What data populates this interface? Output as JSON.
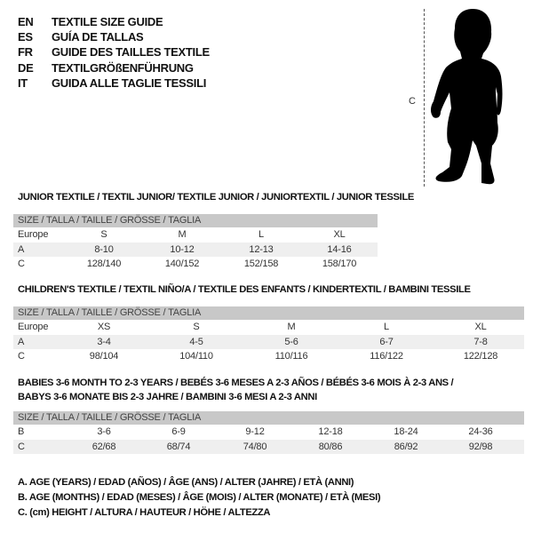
{
  "header": [
    {
      "code": "EN",
      "text": "TEXTILE SIZE GUIDE"
    },
    {
      "code": "ES",
      "text": "GUÍA DE TALLAS"
    },
    {
      "code": "FR",
      "text": "GUIDE DES TAILLES TEXTILE"
    },
    {
      "code": "DE",
      "text": "TEXTILGRÖßENFÜHRUNG"
    },
    {
      "code": "IT",
      "text": "GUIDA ALLE TAGLIE TESSILI"
    }
  ],
  "figure": {
    "measure_label": "C",
    "icon": "child-silhouette"
  },
  "tables": [
    {
      "title": [
        "JUNIOR TEXTILE / TEXTIL JUNIOR/ TEXTILE JUNIOR / JUNIORTEXTIL / JUNIOR TESSILE"
      ],
      "size_header": "SIZE / TALLA / TAILLE / GRÖSSE / TAGLIA",
      "rows": [
        {
          "label": "Europe",
          "values": [
            "S",
            "M",
            "L",
            "XL"
          ]
        },
        {
          "label": "A",
          "values": [
            "8-10",
            "10-12",
            "12-13",
            "14-16"
          ]
        },
        {
          "label": "C",
          "values": [
            "128/140",
            "140/152",
            "152/158",
            "158/170"
          ]
        }
      ]
    },
    {
      "title": [
        "CHILDREN'S TEXTILE / TEXTIL NIÑO/A / TEXTILE DES ENFANTS / KINDERTEXTIL / BAMBINI TESSILE"
      ],
      "size_header": "SIZE / TALLA / TAILLE / GRÖSSE / TAGLIA",
      "rows": [
        {
          "label": "Europe",
          "values": [
            "XS",
            "S",
            "M",
            "L",
            "XL"
          ]
        },
        {
          "label": "A",
          "values": [
            "3-4",
            "4-5",
            "5-6",
            "6-7",
            "7-8"
          ]
        },
        {
          "label": "C",
          "values": [
            "98/104",
            "104/110",
            "110/116",
            "116/122",
            "122/128"
          ]
        }
      ]
    },
    {
      "title": [
        "BABIES 3-6 MONTH TO 2-3 YEARS / BEBÉS 3-6 MESES A 2-3 AÑOS / BÉBÉS 3-6 MOIS À 2-3 ANS /",
        "BABYS 3-6 MONATE BIS 2-3 JAHRE / BAMBINI 3-6 MESI A 2-3 ANNI"
      ],
      "size_header": "SIZE / TALLA / TAILLE / GRÖSSE / TAGLIA",
      "rows": [
        {
          "label": "B",
          "values": [
            "3-6",
            "6-9",
            "9-12",
            "12-18",
            "18-24",
            "24-36"
          ]
        },
        {
          "label": "C",
          "values": [
            "62/68",
            "68/74",
            "74/80",
            "80/86",
            "86/92",
            "92/98"
          ]
        }
      ]
    }
  ],
  "legend": [
    "A. AGE (YEARS) / EDAD (AÑOS) / ÂGE (ANS) / ALTER (JAHRE) / ETÀ (ANNI)",
    "B. AGE (MONTHS) / EDAD (MESES) / ÂGE (MOIS) / ALTER (MONATE) / ETÀ (MESI)",
    "C. (cm) HEIGHT / ALTURA / HAUTEUR / HÖHE / ALTEZZA"
  ]
}
